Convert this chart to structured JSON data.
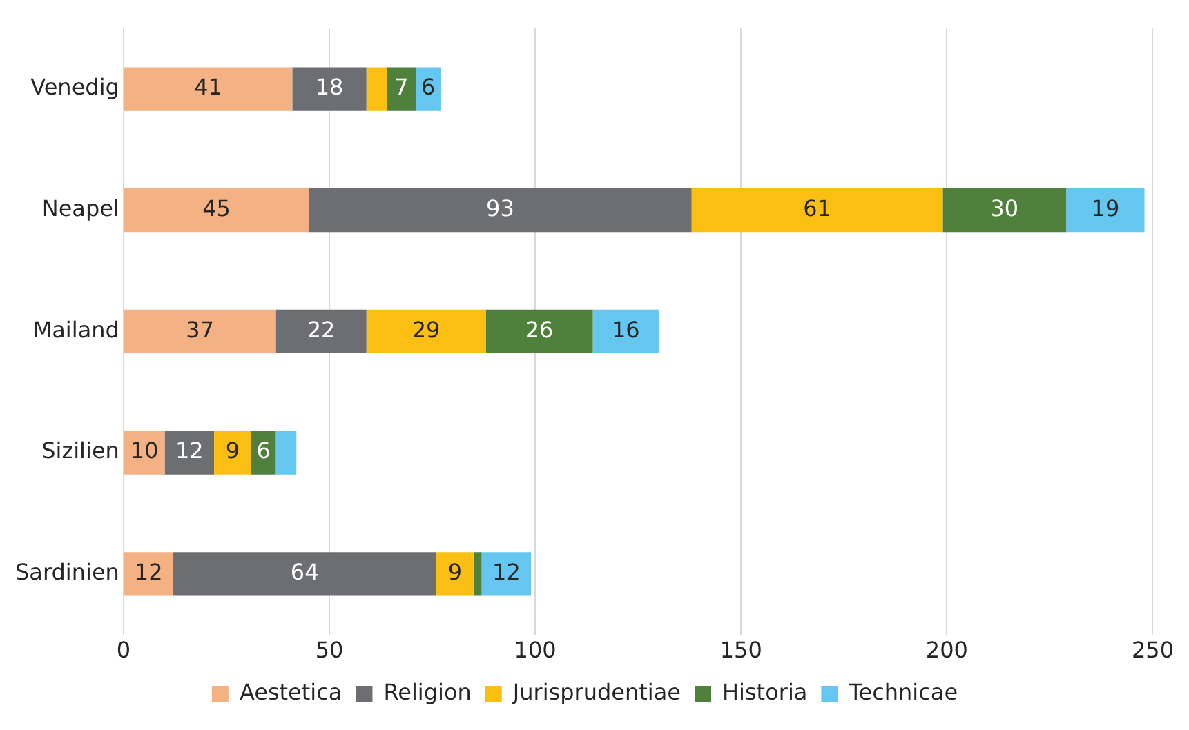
{
  "chart_data": {
    "type": "bar",
    "orientation": "horizontal",
    "stacked": true,
    "categories": [
      "Venedig",
      "Neapel",
      "Mailand",
      "Sizilien",
      "Sardinien"
    ],
    "series": [
      {
        "name": "Aestetica",
        "color": "#f4b183",
        "values": [
          41,
          45,
          37,
          10,
          12
        ],
        "value_labels": [
          "41",
          "45",
          "37",
          "10",
          "12"
        ]
      },
      {
        "name": "Religion",
        "color": "#6d6e71",
        "values": [
          18,
          93,
          22,
          12,
          64
        ],
        "value_labels": [
          "18",
          "93",
          "22",
          "12",
          "64"
        ]
      },
      {
        "name": "Jurisprudentiae",
        "color": "#fbbf14",
        "values": [
          5,
          61,
          29,
          9,
          9
        ],
        "value_labels": [
          null,
          "61",
          "29",
          "9",
          "9"
        ]
      },
      {
        "name": "Historia",
        "color": "#4f813d",
        "values": [
          7,
          30,
          26,
          6,
          2
        ],
        "value_labels": [
          "7",
          "30",
          "26",
          "6",
          null
        ]
      },
      {
        "name": "Technicae",
        "color": "#65c6f0",
        "values": [
          6,
          19,
          16,
          5,
          12
        ],
        "value_labels": [
          "6",
          "19",
          "16",
          null,
          "12"
        ]
      }
    ],
    "xlim": [
      0,
      250
    ],
    "xticks": [
      0,
      50,
      100,
      150,
      200,
      250
    ],
    "grid": "x",
    "legend": "bottom"
  }
}
